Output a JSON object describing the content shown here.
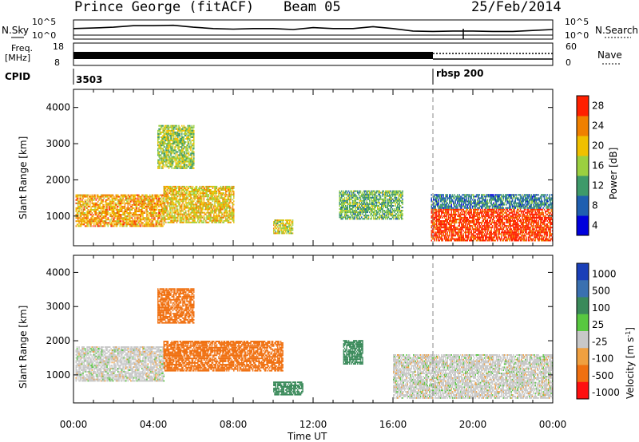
{
  "header": {
    "site": "Prince George (fitACF)",
    "beam": "Beam 05",
    "date": "25/Feb/2014"
  },
  "noise_panel": {
    "left_label": "N.Sky",
    "right_label": "N.Search",
    "left_ticks": [
      "10^5",
      "10^0"
    ],
    "right_ticks": [
      "10^5",
      "10^0"
    ]
  },
  "freq_panel": {
    "left_label_1": "Freq.",
    "left_label_2": "[MHz]",
    "left_ticks": [
      "18",
      "8"
    ],
    "right_label": "Nave",
    "right_ticks": [
      "60",
      "0"
    ]
  },
  "cpid_panel": {
    "label": "CPID",
    "values": [
      "3503",
      "rbsp 200"
    ]
  },
  "axes": {
    "xlabel": "Time UT",
    "xticks": [
      "00:00",
      "04:00",
      "08:00",
      "12:00",
      "16:00",
      "20:00",
      "00:00"
    ],
    "ylabel": "Slant Range [km]",
    "yticks": [
      "1000",
      "2000",
      "3000",
      "4000"
    ]
  },
  "power_scale": {
    "label": "Power [dB]",
    "ticks": [
      "4",
      "8",
      "12",
      "16",
      "20",
      "24",
      "28"
    ],
    "colors": [
      "#0000dd",
      "#1f5fb0",
      "#3e9a6a",
      "#9bd040",
      "#f0c000",
      "#f08000",
      "#ff2000"
    ]
  },
  "velocity_scale": {
    "label": "Velocity [m s",
    "label_sup": "-1",
    "label_end": "]",
    "ticks": [
      "1000",
      "500",
      "100",
      "25",
      "-25",
      "-100",
      "-500",
      "-1000"
    ],
    "colors": [
      "#1a3fb8",
      "#3a70b0",
      "#3a8a5a",
      "#58c840",
      "#c8c8c8",
      "#f0a040",
      "#f07010",
      "#ff1010"
    ]
  },
  "chart_data": [
    {
      "type": "heatmap",
      "title": "Power",
      "xlabel": "Time UT",
      "ylabel": "Slant Range [km]",
      "xlim": [
        "00:00",
        "24:00"
      ],
      "ylim": [
        180,
        4500
      ],
      "z_label": "Power [dB]",
      "z_ticks": [
        4,
        8,
        12,
        16,
        20,
        24,
        28
      ],
      "regions": [
        {
          "t_start": 0.1,
          "t_end": 4.5,
          "r_min": 700,
          "r_max": 1600,
          "power": 22
        },
        {
          "t_start": 4.5,
          "t_end": 8.0,
          "r_min": 800,
          "r_max": 1800,
          "power": 20
        },
        {
          "t_start": 4.2,
          "t_end": 6.0,
          "r_min": 2300,
          "r_max": 3500,
          "power": 16
        },
        {
          "t_start": 10.0,
          "t_end": 11.0,
          "r_min": 500,
          "r_max": 900,
          "power": 18
        },
        {
          "t_start": 13.3,
          "t_end": 16.5,
          "r_min": 900,
          "r_max": 1700,
          "power": 14
        },
        {
          "t_start": 17.9,
          "t_end": 24.0,
          "r_min": 300,
          "r_max": 1200,
          "power": 28
        },
        {
          "t_start": 17.9,
          "t_end": 24.0,
          "r_min": 1200,
          "r_max": 1600,
          "power": 10
        }
      ]
    },
    {
      "type": "heatmap",
      "title": "Velocity",
      "xlabel": "Time UT",
      "ylabel": "Slant Range [km]",
      "xlim": [
        "00:00",
        "24:00"
      ],
      "ylim": [
        180,
        4500
      ],
      "z_label": "Velocity [m s-1]",
      "z_ticks": [
        1000,
        500,
        100,
        25,
        -25,
        -100,
        -500,
        -1000
      ],
      "regions": [
        {
          "t_start": 0.1,
          "t_end": 4.5,
          "r_min": 800,
          "r_max": 1800,
          "velocity": 0
        },
        {
          "t_start": 4.5,
          "t_end": 10.5,
          "r_min": 1100,
          "r_max": 2000,
          "velocity": -300
        },
        {
          "t_start": 4.2,
          "t_end": 6.0,
          "r_min": 2500,
          "r_max": 3500,
          "velocity": -300
        },
        {
          "t_start": 10.0,
          "t_end": 11.5,
          "r_min": 400,
          "r_max": 800,
          "velocity": 150
        },
        {
          "t_start": 13.5,
          "t_end": 14.5,
          "r_min": 1300,
          "r_max": 2000,
          "velocity": 300
        },
        {
          "t_start": 16.0,
          "t_end": 24.0,
          "r_min": 300,
          "r_max": 1600,
          "velocity": 0
        }
      ]
    }
  ],
  "series_lines": {
    "noise_sky": [
      {
        "t": 0,
        "v": 0.55
      },
      {
        "t": 1,
        "v": 0.58
      },
      {
        "t": 2,
        "v": 0.62
      },
      {
        "t": 3,
        "v": 0.7
      },
      {
        "t": 4,
        "v": 0.7
      },
      {
        "t": 5,
        "v": 0.72
      },
      {
        "t": 6,
        "v": 0.62
      },
      {
        "t": 7,
        "v": 0.55
      },
      {
        "t": 8,
        "v": 0.52
      },
      {
        "t": 9,
        "v": 0.55
      },
      {
        "t": 10,
        "v": 0.55
      },
      {
        "t": 11,
        "v": 0.5
      },
      {
        "t": 12,
        "v": 0.6
      },
      {
        "t": 13,
        "v": 0.55
      },
      {
        "t": 14,
        "v": 0.55
      },
      {
        "t": 15,
        "v": 0.65
      },
      {
        "t": 16,
        "v": 0.55
      },
      {
        "t": 17,
        "v": 0.42
      },
      {
        "t": 18,
        "v": 0.4
      },
      {
        "t": 19,
        "v": 0.42
      },
      {
        "t": 20,
        "v": 0.42
      },
      {
        "t": 21,
        "v": 0.4
      },
      {
        "t": 22,
        "v": 0.4
      },
      {
        "t": 23,
        "v": 0.45
      },
      {
        "t": 24,
        "v": 0.5
      }
    ]
  }
}
